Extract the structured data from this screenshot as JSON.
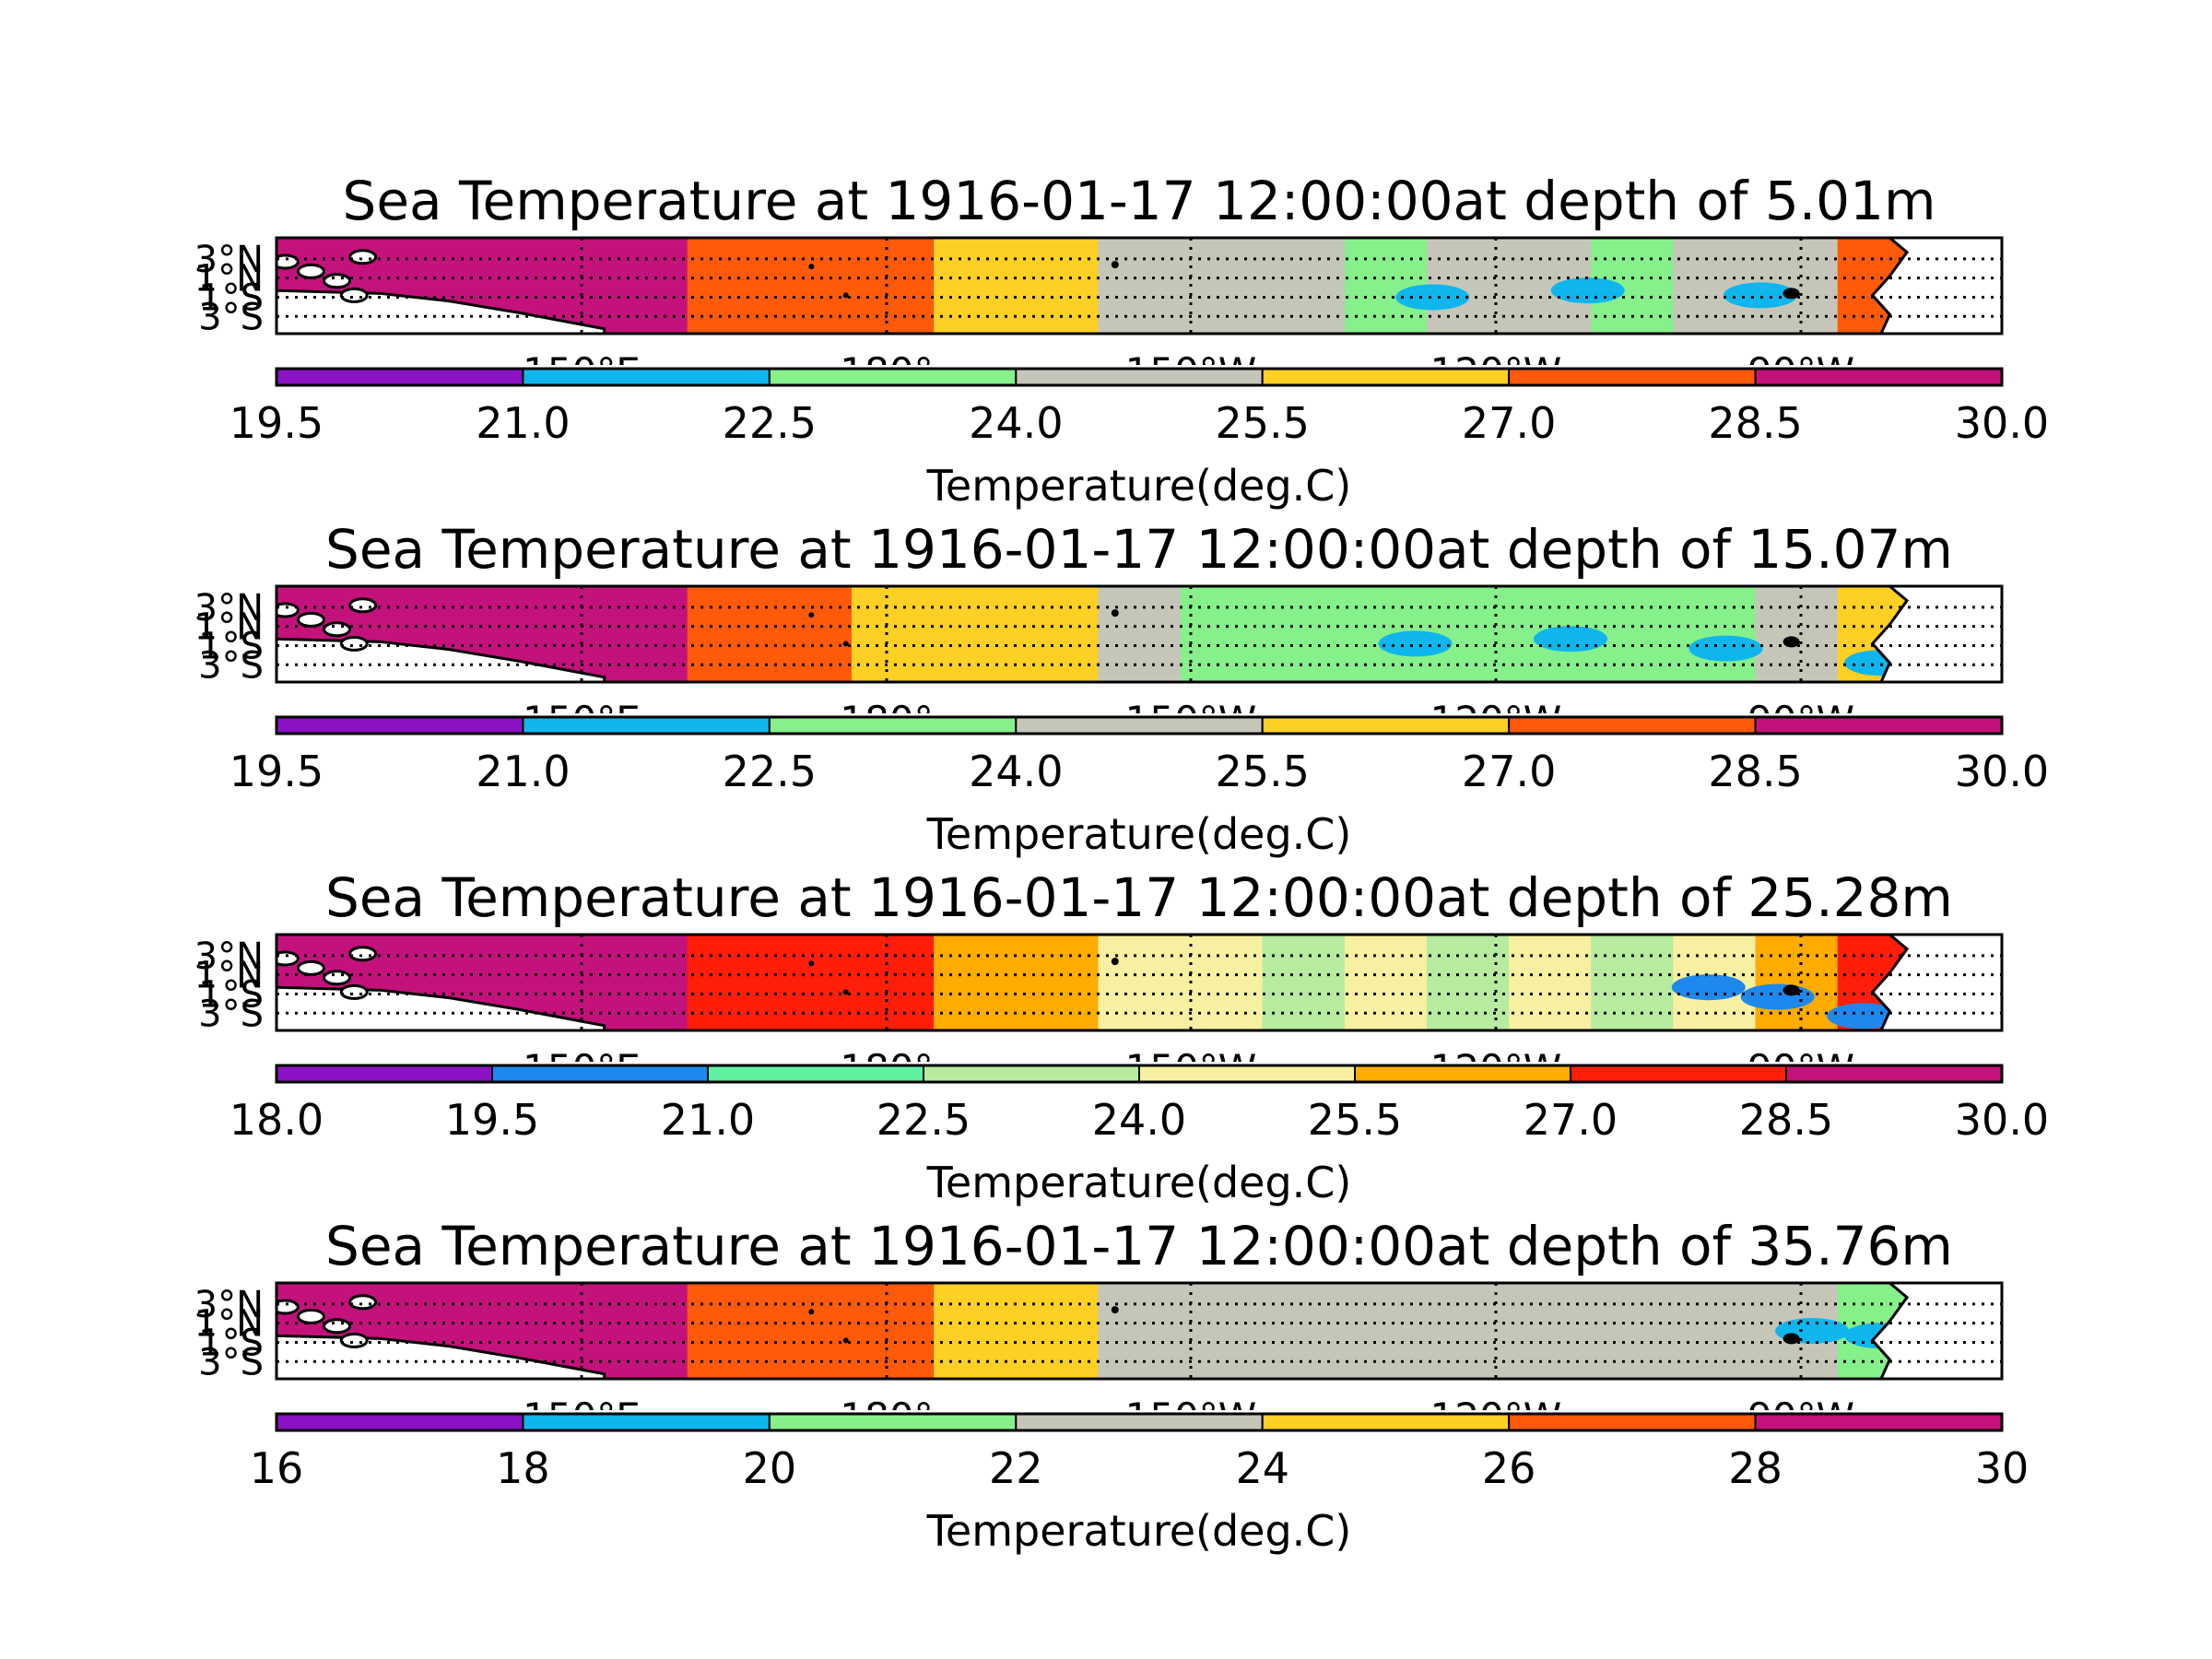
{
  "chart_data": [
    {
      "type": "heatmap",
      "title": "Sea Temperature at 1916-01-17 12:00:00at depth of 5.01m",
      "lat_ticks": [
        "3°N",
        "1°N",
        "1°S",
        "3°S"
      ],
      "lon_ticks": [
        "150°E",
        "180°",
        "150°W",
        "120°W",
        "90°W"
      ],
      "grid": true,
      "colorbar": {
        "label": "Temperature(deg.C)",
        "ticks": [
          "19.5",
          "21.0",
          "22.5",
          "24.0",
          "25.5",
          "27.0",
          "28.5",
          "30.0"
        ],
        "levels": [
          19.5,
          21.0,
          22.5,
          24.0,
          25.5,
          27.0,
          28.5,
          30.0
        ],
        "colors": [
          "#8a12c4",
          "#0fb6ee",
          "#86f08a",
          "#c6c6b8",
          "#fdd023",
          "#ff5a0a",
          "#c4127c"
        ]
      },
      "field": {
        "lon_segments": [
          {
            "value": 29.5
          },
          {
            "value": 29.5
          },
          {
            "value": 29.3
          },
          {
            "value": 29.3
          },
          {
            "value": 28.9
          },
          {
            "value": 28.0
          },
          {
            "value": 27.8
          },
          {
            "value": 27.5
          },
          {
            "value": 26.0
          },
          {
            "value": 25.8
          },
          {
            "value": 24.5
          },
          {
            "value": 24.0
          },
          {
            "value": 24.2
          },
          {
            "value": 23.8
          },
          {
            "value": 24.0
          },
          {
            "value": 24.1
          },
          {
            "value": 23.9
          },
          {
            "value": 24.3
          },
          {
            "value": 24.6
          },
          {
            "value": 27.5
          },
          {
            "value": 25.0
          }
        ],
        "cold_patches": [
          {
            "lon_frac": 0.67,
            "lat_frac": 0.62,
            "value": 22.0
          },
          {
            "lon_frac": 0.76,
            "lat_frac": 0.55,
            "value": 22.0
          },
          {
            "lon_frac": 0.86,
            "lat_frac": 0.6,
            "value": 22.0
          }
        ]
      }
    },
    {
      "type": "heatmap",
      "title": "Sea Temperature at 1916-01-17 12:00:00at depth of 15.07m",
      "lat_ticks": [
        "3°N",
        "1°N",
        "1°S",
        "3°S"
      ],
      "lon_ticks": [
        "150°E",
        "180°",
        "150°W",
        "120°W",
        "90°W"
      ],
      "grid": true,
      "colorbar": {
        "label": "Temperature(deg.C)",
        "ticks": [
          "19.5",
          "21.0",
          "22.5",
          "24.0",
          "25.5",
          "27.0",
          "28.5",
          "30.0"
        ],
        "levels": [
          19.5,
          21.0,
          22.5,
          24.0,
          25.5,
          27.0,
          28.5,
          30.0
        ],
        "colors": [
          "#8a12c4",
          "#0fb6ee",
          "#86f08a",
          "#c6c6b8",
          "#fdd023",
          "#ff5a0a",
          "#c4127c"
        ]
      },
      "field": {
        "lon_segments": [
          {
            "value": 29.5
          },
          {
            "value": 29.5
          },
          {
            "value": 29.3
          },
          {
            "value": 29.3
          },
          {
            "value": 28.8
          },
          {
            "value": 27.9
          },
          {
            "value": 27.6
          },
          {
            "value": 26.8
          },
          {
            "value": 25.9
          },
          {
            "value": 25.7
          },
          {
            "value": 24.3
          },
          {
            "value": 23.9
          },
          {
            "value": 23.2
          },
          {
            "value": 23.6
          },
          {
            "value": 23.4
          },
          {
            "value": 23.8
          },
          {
            "value": 23.5
          },
          {
            "value": 23.9
          },
          {
            "value": 24.2
          },
          {
            "value": 25.6
          },
          {
            "value": 24.4
          }
        ],
        "cold_patches": [
          {
            "lon_frac": 0.66,
            "lat_frac": 0.6,
            "value": 22.0
          },
          {
            "lon_frac": 0.75,
            "lat_frac": 0.55,
            "value": 22.0
          },
          {
            "lon_frac": 0.84,
            "lat_frac": 0.65,
            "value": 22.0
          },
          {
            "lon_frac": 0.93,
            "lat_frac": 0.8,
            "value": 22.0
          }
        ]
      }
    },
    {
      "type": "heatmap",
      "title": "Sea Temperature at 1916-01-17 12:00:00at depth of 25.28m",
      "lat_ticks": [
        "3°N",
        "1°N",
        "1°S",
        "3°S"
      ],
      "lon_ticks": [
        "150°E",
        "180°",
        "150°W",
        "120°W",
        "90°W"
      ],
      "grid": true,
      "colorbar": {
        "label": "Temperature(deg.C)",
        "ticks": [
          "18.0",
          "19.5",
          "21.0",
          "22.5",
          "24.0",
          "25.5",
          "27.0",
          "28.5",
          "30.0"
        ],
        "levels": [
          18.0,
          19.5,
          21.0,
          22.5,
          24.0,
          25.5,
          27.0,
          28.5,
          30.0
        ],
        "colors": [
          "#8a12c4",
          "#1e88ee",
          "#5ff0a0",
          "#b7eba0",
          "#f7f0a0",
          "#ffab00",
          "#ff1e0a",
          "#c4127c"
        ]
      },
      "field": {
        "lon_segments": [
          {
            "value": 29.5
          },
          {
            "value": 29.5
          },
          {
            "value": 29.2
          },
          {
            "value": 29.2
          },
          {
            "value": 28.9
          },
          {
            "value": 27.9
          },
          {
            "value": 27.6
          },
          {
            "value": 27.2
          },
          {
            "value": 26.0
          },
          {
            "value": 25.8
          },
          {
            "value": 24.5
          },
          {
            "value": 24.2
          },
          {
            "value": 23.5
          },
          {
            "value": 24.1
          },
          {
            "value": 23.2
          },
          {
            "value": 24.0
          },
          {
            "value": 23.6
          },
          {
            "value": 24.3
          },
          {
            "value": 25.7
          },
          {
            "value": 27.3
          },
          {
            "value": 24.0
          }
        ],
        "cold_patches": [
          {
            "lon_frac": 0.83,
            "lat_frac": 0.55,
            "value": 20.5
          },
          {
            "lon_frac": 0.87,
            "lat_frac": 0.65,
            "value": 20.5
          },
          {
            "lon_frac": 0.92,
            "lat_frac": 0.85,
            "value": 20.5
          }
        ]
      }
    },
    {
      "type": "heatmap",
      "title": "Sea Temperature at 1916-01-17 12:00:00at depth of 35.76m",
      "lat_ticks": [
        "3°N",
        "1°N",
        "1°S",
        "3°S"
      ],
      "lon_ticks": [
        "150°E",
        "180°",
        "150°W",
        "120°W",
        "90°W"
      ],
      "grid": true,
      "colorbar": {
        "label": "Temperature(deg.C)",
        "ticks": [
          "16",
          "18",
          "20",
          "22",
          "24",
          "26",
          "28",
          "30"
        ],
        "levels": [
          16,
          18,
          20,
          22,
          24,
          26,
          28,
          30
        ],
        "colors": [
          "#8a12c4",
          "#0fb6ee",
          "#86f08a",
          "#c6c6b8",
          "#fdd023",
          "#ff5a0a",
          "#c4127c"
        ]
      },
      "field": {
        "lon_segments": [
          {
            "value": 29.0
          },
          {
            "value": 29.0
          },
          {
            "value": 28.8
          },
          {
            "value": 28.8
          },
          {
            "value": 28.5
          },
          {
            "value": 27.0
          },
          {
            "value": 26.8
          },
          {
            "value": 26.5
          },
          {
            "value": 25.5
          },
          {
            "value": 25.0
          },
          {
            "value": 23.5
          },
          {
            "value": 23.0
          },
          {
            "value": 22.5
          },
          {
            "value": 22.8
          },
          {
            "value": 22.4
          },
          {
            "value": 22.6
          },
          {
            "value": 22.3
          },
          {
            "value": 22.6
          },
          {
            "value": 22.0
          },
          {
            "value": 21.5
          },
          {
            "value": 22.0
          }
        ],
        "cold_patches": [
          {
            "lon_frac": 0.89,
            "lat_frac": 0.5,
            "value": 19.0
          },
          {
            "lon_frac": 0.93,
            "lat_frac": 0.55,
            "value": 19.0
          }
        ]
      }
    }
  ]
}
